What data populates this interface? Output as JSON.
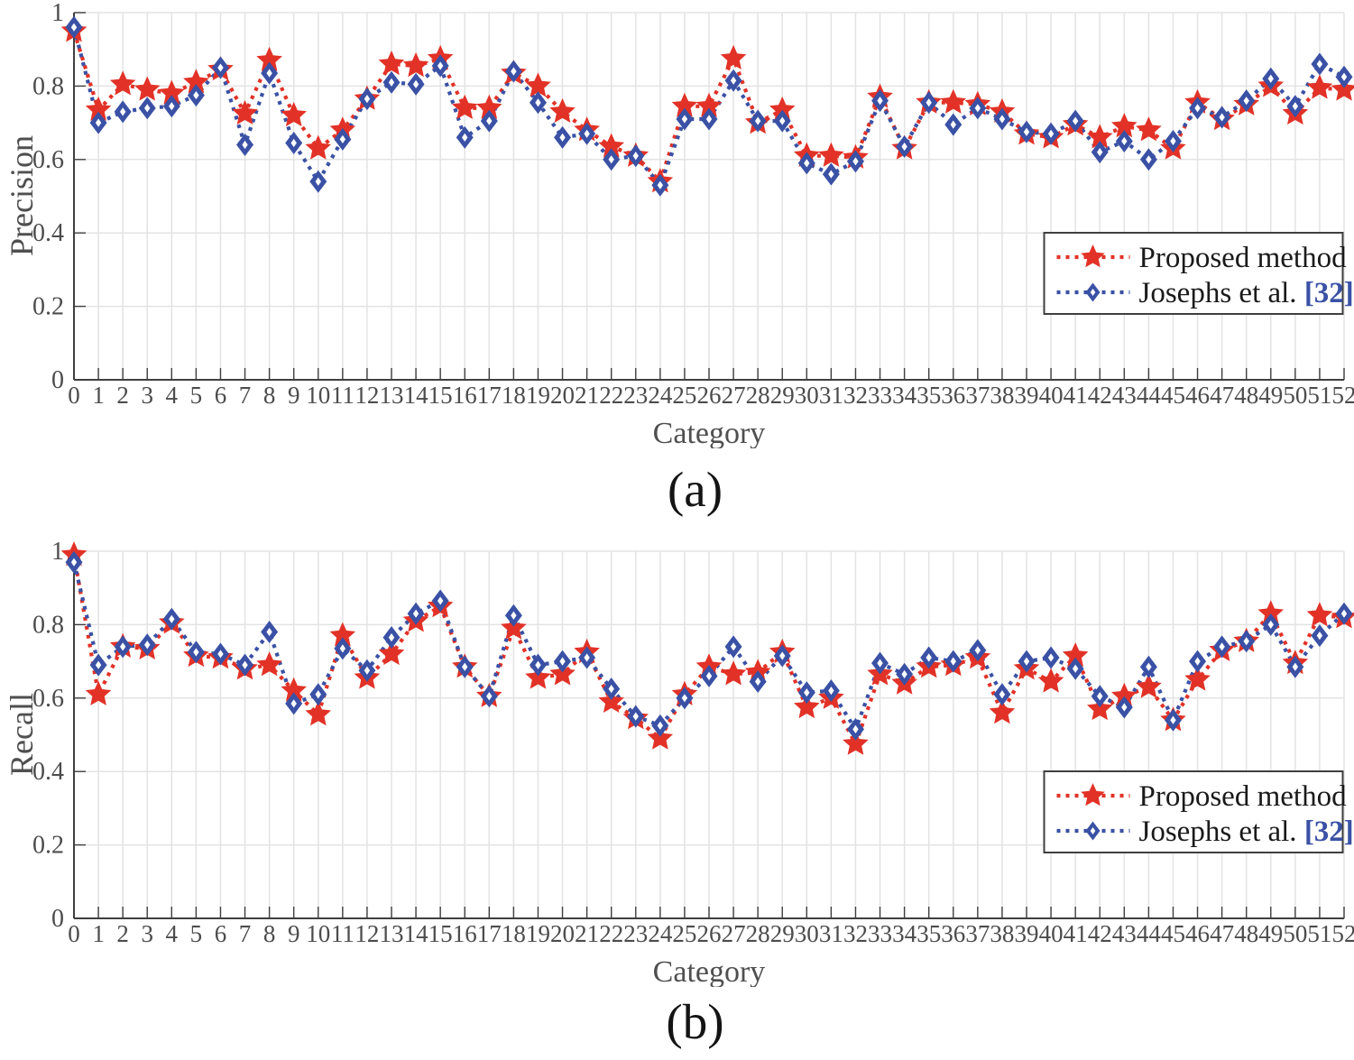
{
  "page": {
    "background": "#ffffff"
  },
  "chart_data": [
    {
      "type": "line",
      "caption": "(a)",
      "xlabel": "Category",
      "ylabel": "Precision",
      "x": [
        0,
        1,
        2,
        3,
        4,
        5,
        6,
        7,
        8,
        9,
        10,
        11,
        12,
        13,
        14,
        15,
        16,
        17,
        18,
        19,
        20,
        21,
        22,
        23,
        24,
        25,
        26,
        27,
        28,
        29,
        30,
        31,
        32,
        33,
        34,
        35,
        36,
        37,
        38,
        39,
        40,
        41,
        42,
        43,
        44,
        45,
        46,
        47,
        48,
        49,
        50,
        51,
        52
      ],
      "xlim": [
        0,
        52
      ],
      "ylim": [
        0,
        1
      ],
      "yticks": [
        0,
        0.2,
        0.4,
        0.6,
        0.8,
        1
      ],
      "ytick_labels": [
        "0",
        "0.2",
        "0.4",
        "0.6",
        "0.8",
        "1"
      ],
      "grid": true,
      "legend": {
        "position": "inside-upper-right",
        "entries": [
          {
            "marker": "star",
            "line_color": "#e23227",
            "parts": [
              {
                "text": "Proposed method",
                "color": "#1a1a1a",
                "bold": false
              }
            ]
          },
          {
            "marker": "diamond",
            "line_color": "#3a51a5",
            "parts": [
              {
                "text": "Josephs et al. ",
                "color": "#1a1a1a",
                "bold": false
              },
              {
                "text": "[32]",
                "color": "#3a51a5",
                "bold": true
              }
            ]
          }
        ]
      },
      "series": [
        {
          "name": "Proposed method",
          "color": "#e23227",
          "marker": "star",
          "linestyle": "dotted",
          "values": [
            0.95,
            0.735,
            0.805,
            0.79,
            0.78,
            0.81,
            0.845,
            0.725,
            0.87,
            0.72,
            0.63,
            0.68,
            0.765,
            0.86,
            0.855,
            0.875,
            0.74,
            0.74,
            0.835,
            0.8,
            0.73,
            0.68,
            0.635,
            0.61,
            0.54,
            0.745,
            0.745,
            0.875,
            0.7,
            0.735,
            0.61,
            0.61,
            0.605,
            0.77,
            0.63,
            0.755,
            0.755,
            0.75,
            0.73,
            0.67,
            0.66,
            0.695,
            0.66,
            0.69,
            0.68,
            0.63,
            0.755,
            0.71,
            0.75,
            0.8,
            0.725,
            0.795,
            0.79
          ]
        },
        {
          "name": "Josephs et al. [32]",
          "color": "#3a51a5",
          "marker": "diamond",
          "linestyle": "dotted",
          "values": [
            0.96,
            0.7,
            0.73,
            0.74,
            0.745,
            0.775,
            0.85,
            0.64,
            0.835,
            0.645,
            0.54,
            0.655,
            0.765,
            0.81,
            0.805,
            0.855,
            0.66,
            0.705,
            0.84,
            0.755,
            0.66,
            0.67,
            0.6,
            0.61,
            0.53,
            0.71,
            0.71,
            0.815,
            0.705,
            0.705,
            0.59,
            0.56,
            0.595,
            0.76,
            0.635,
            0.755,
            0.695,
            0.74,
            0.71,
            0.675,
            0.67,
            0.705,
            0.62,
            0.65,
            0.6,
            0.65,
            0.74,
            0.715,
            0.76,
            0.82,
            0.745,
            0.86,
            0.825
          ]
        }
      ]
    },
    {
      "type": "line",
      "caption": "(b)",
      "xlabel": "Category",
      "ylabel": "Recall",
      "x": [
        0,
        1,
        2,
        3,
        4,
        5,
        6,
        7,
        8,
        9,
        10,
        11,
        12,
        13,
        14,
        15,
        16,
        17,
        18,
        19,
        20,
        21,
        22,
        23,
        24,
        25,
        26,
        27,
        28,
        29,
        30,
        31,
        32,
        33,
        34,
        35,
        36,
        37,
        38,
        39,
        40,
        41,
        42,
        43,
        44,
        45,
        46,
        47,
        48,
        49,
        50,
        51,
        52
      ],
      "xlim": [
        0,
        52
      ],
      "ylim": [
        0,
        1
      ],
      "yticks": [
        0,
        0.2,
        0.4,
        0.6,
        0.8,
        1
      ],
      "ytick_labels": [
        "0",
        "0.2",
        "0.4",
        "0.6",
        "0.8",
        "1"
      ],
      "grid": true,
      "legend": {
        "position": "inside-upper-right",
        "entries": [
          {
            "marker": "star",
            "line_color": "#e23227",
            "parts": [
              {
                "text": "Proposed method",
                "color": "#1a1a1a",
                "bold": false
              }
            ]
          },
          {
            "marker": "diamond",
            "line_color": "#3a51a5",
            "parts": [
              {
                "text": "Josephs et al. ",
                "color": "#1a1a1a",
                "bold": false
              },
              {
                "text": "[32]",
                "color": "#3a51a5",
                "bold": true
              }
            ]
          }
        ]
      },
      "series": [
        {
          "name": "Proposed method",
          "color": "#e23227",
          "marker": "star",
          "linestyle": "dotted",
          "values": [
            0.99,
            0.61,
            0.74,
            0.735,
            0.805,
            0.715,
            0.71,
            0.68,
            0.69,
            0.62,
            0.555,
            0.77,
            0.655,
            0.72,
            0.81,
            0.85,
            0.685,
            0.605,
            0.79,
            0.655,
            0.665,
            0.725,
            0.59,
            0.545,
            0.49,
            0.61,
            0.685,
            0.665,
            0.67,
            0.725,
            0.575,
            0.6,
            0.475,
            0.665,
            0.64,
            0.685,
            0.69,
            0.71,
            0.56,
            0.68,
            0.645,
            0.715,
            0.57,
            0.605,
            0.63,
            0.54,
            0.65,
            0.73,
            0.755,
            0.83,
            0.695,
            0.825,
            0.82
          ]
        },
        {
          "name": "Josephs et al. [32]",
          "color": "#3a51a5",
          "marker": "diamond",
          "linestyle": "dotted",
          "values": [
            0.97,
            0.69,
            0.74,
            0.745,
            0.815,
            0.725,
            0.72,
            0.69,
            0.78,
            0.585,
            0.61,
            0.735,
            0.675,
            0.765,
            0.83,
            0.865,
            0.685,
            0.605,
            0.825,
            0.69,
            0.7,
            0.71,
            0.625,
            0.55,
            0.525,
            0.6,
            0.66,
            0.74,
            0.645,
            0.715,
            0.615,
            0.62,
            0.515,
            0.695,
            0.665,
            0.71,
            0.7,
            0.73,
            0.61,
            0.7,
            0.71,
            0.68,
            0.605,
            0.575,
            0.685,
            0.54,
            0.7,
            0.74,
            0.755,
            0.8,
            0.685,
            0.77,
            0.83
          ]
        }
      ]
    }
  ],
  "style_colors": {
    "grid": "#e3e3e3",
    "axis": "#3f3f3f",
    "tick_label": "#4c4c4c",
    "axis_label": "#4f4f4f"
  }
}
